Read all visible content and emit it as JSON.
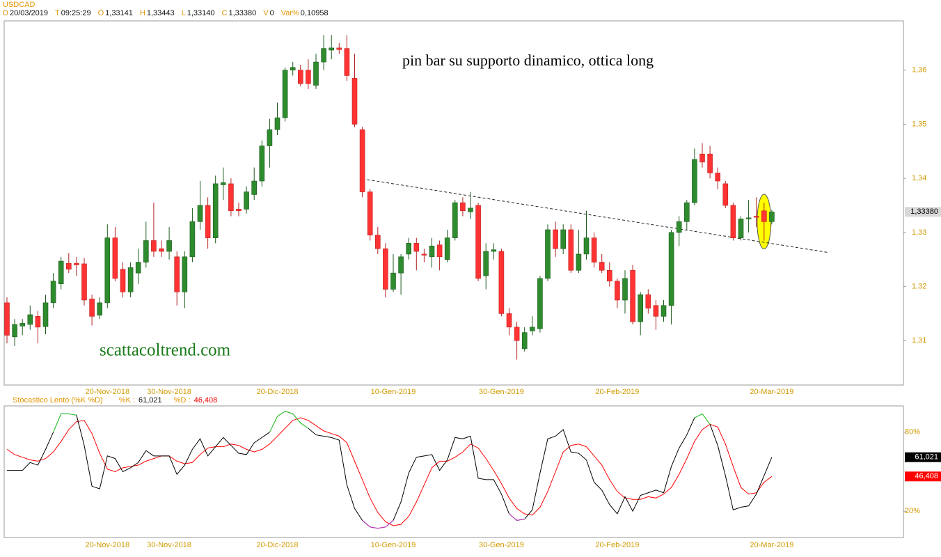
{
  "chart_data": [
    {
      "type": "candlestick",
      "title": "USDCAD",
      "info": [
        [
          "D",
          "20/03/2019"
        ],
        [
          "T",
          "09:25:29"
        ],
        [
          "O",
          "1,33141"
        ],
        [
          "H",
          "1,33443"
        ],
        [
          "L",
          "1,33140"
        ],
        [
          "C",
          "1,33380"
        ],
        [
          "V",
          "0"
        ],
        [
          "Var%",
          "0,10958"
        ]
      ],
      "categories": [
        null,
        null,
        null,
        null,
        null,
        null,
        null,
        null,
        null,
        null,
        null,
        null,
        null,
        "20-Nov-2018",
        null,
        null,
        null,
        null,
        null,
        null,
        null,
        "30-Nov-2018",
        null,
        null,
        null,
        null,
        null,
        null,
        null,
        null,
        null,
        null,
        null,
        null,
        null,
        "20-Dic-2018",
        null,
        null,
        null,
        null,
        null,
        null,
        null,
        null,
        null,
        null,
        null,
        null,
        null,
        null,
        "10-Gen-2019",
        null,
        null,
        null,
        null,
        null,
        null,
        null,
        null,
        null,
        null,
        null,
        null,
        null,
        "30-Gen-2019",
        null,
        null,
        null,
        null,
        null,
        null,
        null,
        null,
        null,
        null,
        null,
        null,
        null,
        null,
        "20-Feb-2019",
        null,
        null,
        null,
        null,
        null,
        null,
        null,
        null,
        null,
        null,
        null,
        null,
        null,
        null,
        null,
        null,
        null,
        null,
        null,
        "20-Mar-2019"
      ],
      "open": [
        1.317,
        1.3107,
        1.3127,
        1.313,
        1.3145,
        1.3126,
        1.317,
        1.3205,
        1.3243,
        1.3243,
        1.3242,
        1.3177,
        1.3147,
        1.317,
        1.329,
        1.3232,
        1.319,
        1.3225,
        1.3245,
        1.3285,
        1.327,
        1.3265,
        1.3255,
        1.319,
        1.3255,
        1.332,
        1.335,
        1.329,
        1.3388,
        1.339,
        1.3343,
        1.3343,
        1.337,
        1.3395,
        1.346,
        1.349,
        1.3512,
        1.36,
        1.36,
        1.36,
        1.3572,
        1.3615,
        1.3637,
        1.3641,
        1.364,
        1.3585,
        1.349,
        1.3375,
        1.3295,
        1.327,
        1.3195,
        1.3225,
        1.326,
        1.328,
        1.326,
        1.3255,
        1.3277,
        1.325,
        1.329,
        1.3355,
        1.3338,
        1.335,
        1.322,
        1.3265,
        1.3265,
        1.315,
        1.3125,
        1.3085,
        1.3118,
        1.3122,
        1.3215,
        1.3305,
        1.327,
        1.3305,
        1.323,
        1.326,
        1.329,
        1.3245,
        1.323,
        1.321,
        1.3175,
        1.323,
        1.3135,
        1.3185,
        1.3165,
        1.3145,
        1.3165,
        1.33,
        1.332,
        1.3355,
        1.3445,
        1.3445,
        1.341,
        1.339,
        1.335,
        1.329,
        1.3325,
        1.333,
        1.334,
        1.332
      ],
      "high": [
        1.318,
        1.314,
        1.314,
        1.3165,
        1.3155,
        1.3185,
        1.3225,
        1.3255,
        1.3262,
        1.3255,
        1.3253,
        1.3185,
        1.318,
        1.3315,
        1.331,
        1.3245,
        1.3245,
        1.327,
        1.332,
        1.3355,
        1.3285,
        1.331,
        1.3265,
        1.3265,
        1.3345,
        1.3395,
        1.3365,
        1.3405,
        1.342,
        1.34,
        1.3355,
        1.3385,
        1.342,
        1.347,
        1.351,
        1.354,
        1.3605,
        1.3615,
        1.361,
        1.362,
        1.363,
        1.3665,
        1.3665,
        1.365,
        1.3665,
        1.363,
        1.3495,
        1.338,
        1.331,
        1.328,
        1.326,
        1.326,
        1.329,
        1.329,
        1.327,
        1.329,
        1.3285,
        1.3305,
        1.336,
        1.3365,
        1.3375,
        1.3355,
        1.328,
        1.328,
        1.327,
        1.316,
        1.3135,
        1.3125,
        1.3145,
        1.322,
        1.3315,
        1.332,
        1.3315,
        1.3315,
        1.3305,
        1.334,
        1.33,
        1.326,
        1.3245,
        1.3215,
        1.323,
        1.324,
        1.319,
        1.3195,
        1.3175,
        1.3175,
        1.3305,
        1.333,
        1.336,
        1.3455,
        1.3465,
        1.346,
        1.342,
        1.3395,
        1.3355,
        1.333,
        1.336,
        1.3365,
        1.3355,
        1.3342
      ],
      "low": [
        1.3095,
        1.309,
        1.311,
        1.312,
        1.3095,
        1.3112,
        1.316,
        1.3195,
        1.3225,
        1.322,
        1.3165,
        1.3128,
        1.314,
        1.316,
        1.321,
        1.318,
        1.318,
        1.3205,
        1.3235,
        1.3255,
        1.3255,
        1.325,
        1.3165,
        1.316,
        1.3245,
        1.3305,
        1.327,
        1.328,
        1.336,
        1.333,
        1.333,
        1.3335,
        1.336,
        1.3385,
        1.342,
        1.348,
        1.3505,
        1.359,
        1.357,
        1.3565,
        1.3565,
        1.36,
        1.362,
        1.363,
        1.358,
        1.3495,
        1.3365,
        1.3285,
        1.326,
        1.318,
        1.319,
        1.3185,
        1.325,
        1.323,
        1.3245,
        1.3235,
        1.323,
        1.3245,
        1.3285,
        1.333,
        1.3325,
        1.321,
        1.3195,
        1.325,
        1.3145,
        1.311,
        1.3065,
        1.308,
        1.311,
        1.3115,
        1.321,
        1.3255,
        1.326,
        1.3225,
        1.3225,
        1.325,
        1.3235,
        1.3225,
        1.32,
        1.316,
        1.315,
        1.313,
        1.311,
        1.315,
        1.312,
        1.3135,
        1.313,
        1.3275,
        1.3305,
        1.335,
        1.342,
        1.34,
        1.338,
        1.3345,
        1.3285,
        1.3285,
        1.33,
        1.331,
        1.3285,
        1.3315
      ],
      "close": [
        1.311,
        1.313,
        1.3132,
        1.3148,
        1.3125,
        1.317,
        1.321,
        1.3247,
        1.3232,
        1.324,
        1.3175,
        1.3145,
        1.317,
        1.329,
        1.3215,
        1.319,
        1.3235,
        1.3245,
        1.3285,
        1.3265,
        1.3265,
        1.3285,
        1.319,
        1.3255,
        1.332,
        1.335,
        1.329,
        1.339,
        1.3392,
        1.334,
        1.334,
        1.3375,
        1.3395,
        1.346,
        1.349,
        1.3512,
        1.36,
        1.3605,
        1.3575,
        1.3575,
        1.3615,
        1.364,
        1.3641,
        1.3638,
        1.359,
        1.35,
        1.3375,
        1.3295,
        1.327,
        1.3195,
        1.3225,
        1.3255,
        1.328,
        1.3265,
        1.3258,
        1.3275,
        1.3255,
        1.329,
        1.3355,
        1.334,
        1.3345,
        1.3215,
        1.3265,
        1.3268,
        1.315,
        1.3125,
        1.31,
        1.3115,
        1.3125,
        1.3215,
        1.3305,
        1.327,
        1.3305,
        1.323,
        1.326,
        1.329,
        1.3245,
        1.323,
        1.321,
        1.3175,
        1.3215,
        1.3135,
        1.3185,
        1.316,
        1.3145,
        1.3165,
        1.33,
        1.332,
        1.3355,
        1.3435,
        1.343,
        1.341,
        1.3395,
        1.335,
        1.329,
        1.3325,
        1.3327,
        1.3328,
        1.332,
        1.3338
      ],
      "up_color": "#2e8b2e",
      "down_color": "#ff3333",
      "ylim": [
        1.3018,
        1.3691
      ],
      "yticks": [
        {
          "value": 1.31,
          "label": "1,31"
        },
        {
          "value": 1.32,
          "label": "1,32"
        },
        {
          "value": 1.33,
          "label": "1,33"
        },
        {
          "value": 1.34,
          "label": "1,34"
        },
        {
          "value": 1.35,
          "label": "1,35"
        },
        {
          "value": 1.36,
          "label": "1,36"
        }
      ],
      "last_label": "1,33380",
      "annotations": [
        "pin bar su supporto dinamico, ottica long",
        "scattacoltrend.com"
      ],
      "trendline": {
        "from": [
          46,
          1.3399
        ],
        "to": [
          106.3,
          1.3263
        ]
      },
      "highlight": {
        "index": 98,
        "color": "#ffff00"
      }
    },
    {
      "type": "line",
      "title": "Stocastico Lento (%K %D)",
      "series": [
        {
          "name": "%K :",
          "color": "#000000",
          "value_label": "61,021",
          "values": [
            51,
            51,
            51,
            57,
            55,
            67,
            80,
            94,
            94,
            93,
            70,
            39,
            37,
            62,
            60,
            50,
            53,
            57,
            66,
            62,
            62,
            62,
            48,
            55,
            67,
            75,
            62,
            69,
            76,
            70,
            64,
            63,
            72,
            76,
            80,
            92,
            96,
            94,
            87,
            83,
            78,
            77,
            76,
            74,
            40,
            22,
            13,
            8,
            7,
            8,
            13,
            27,
            49,
            61,
            62,
            63,
            51,
            59,
            76,
            75,
            77,
            45,
            44,
            44,
            33,
            18,
            13,
            14,
            21,
            49,
            75,
            77,
            82,
            65,
            64,
            59,
            42,
            36,
            25,
            18,
            31,
            20,
            32,
            34,
            36,
            34,
            54,
            68,
            78,
            91,
            94,
            86,
            70,
            47,
            21,
            23,
            24,
            33,
            47,
            61.021
          ]
        },
        {
          "name": "%D :",
          "color": "#ff0000",
          "value_label": "46,408",
          "values": [
            67,
            63,
            61,
            59,
            58,
            60,
            65,
            73,
            82,
            88,
            89,
            79,
            64,
            52,
            50,
            53,
            54,
            55,
            58,
            60,
            62,
            62,
            58,
            56,
            57,
            63,
            68,
            69,
            69,
            71,
            70,
            67,
            65,
            67,
            71,
            77,
            83,
            89,
            91,
            89,
            85,
            81,
            79,
            77,
            72,
            58,
            44,
            30,
            19,
            12,
            9,
            10,
            16,
            27,
            40,
            53,
            58,
            58,
            61,
            65,
            71,
            68,
            60,
            51,
            41,
            30,
            22,
            18,
            17,
            23,
            35,
            50,
            65,
            70,
            71,
            69,
            62,
            55,
            44,
            35,
            30,
            29,
            29,
            31,
            30,
            33,
            38,
            48,
            60,
            73,
            82,
            86,
            84,
            71,
            54,
            38,
            33,
            34,
            42,
            46.408
          ]
        }
      ],
      "ylim": [
        0,
        100
      ],
      "yticks": [
        {
          "value": 20,
          "label": "20%"
        },
        {
          "value": 80,
          "label": "80%"
        }
      ],
      "overbought": {
        "level": 80,
        "color": "#33dd33"
      },
      "oversold": {
        "level": 20,
        "color": "#cc33cc"
      }
    }
  ]
}
